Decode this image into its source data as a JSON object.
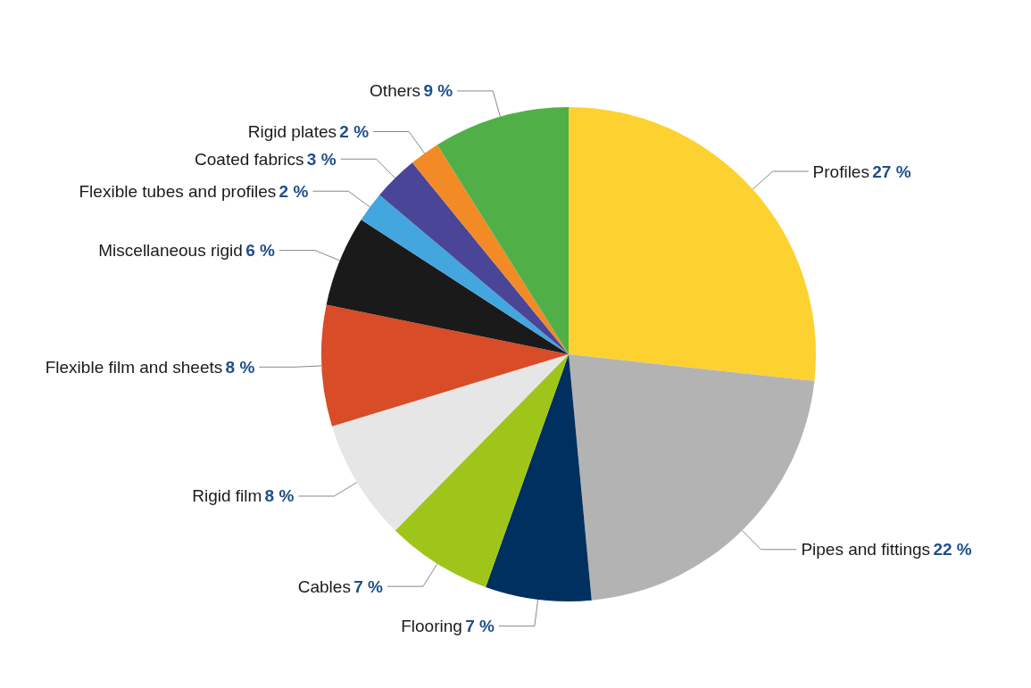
{
  "chart_data": {
    "type": "pie",
    "categories": [
      "Profiles",
      "Pipes and fittings",
      "Flooring",
      "Cables",
      "Rigid film",
      "Flexible film and sheets",
      "Miscellaneous rigid",
      "Flexible tubes and profiles",
      "Coated fabrics",
      "Rigid plates",
      "Others"
    ],
    "values": [
      27,
      22,
      7,
      7,
      8,
      8,
      6,
      2,
      3,
      2,
      9
    ],
    "value_labels": [
      "27 %",
      "22 %",
      "7 %",
      "7 %",
      "8 %",
      "8 %",
      "6 %",
      "2 %",
      "3 %",
      "2 %",
      "9 %"
    ],
    "colors": [
      "#fdd130",
      "#b3b3b3",
      "#00305f",
      "#a0c51a",
      "#e6e6e6",
      "#d84c27",
      "#1a1a1a",
      "#43a6de",
      "#4a4597",
      "#f28a25",
      "#50b047"
    ],
    "legend": false
  }
}
